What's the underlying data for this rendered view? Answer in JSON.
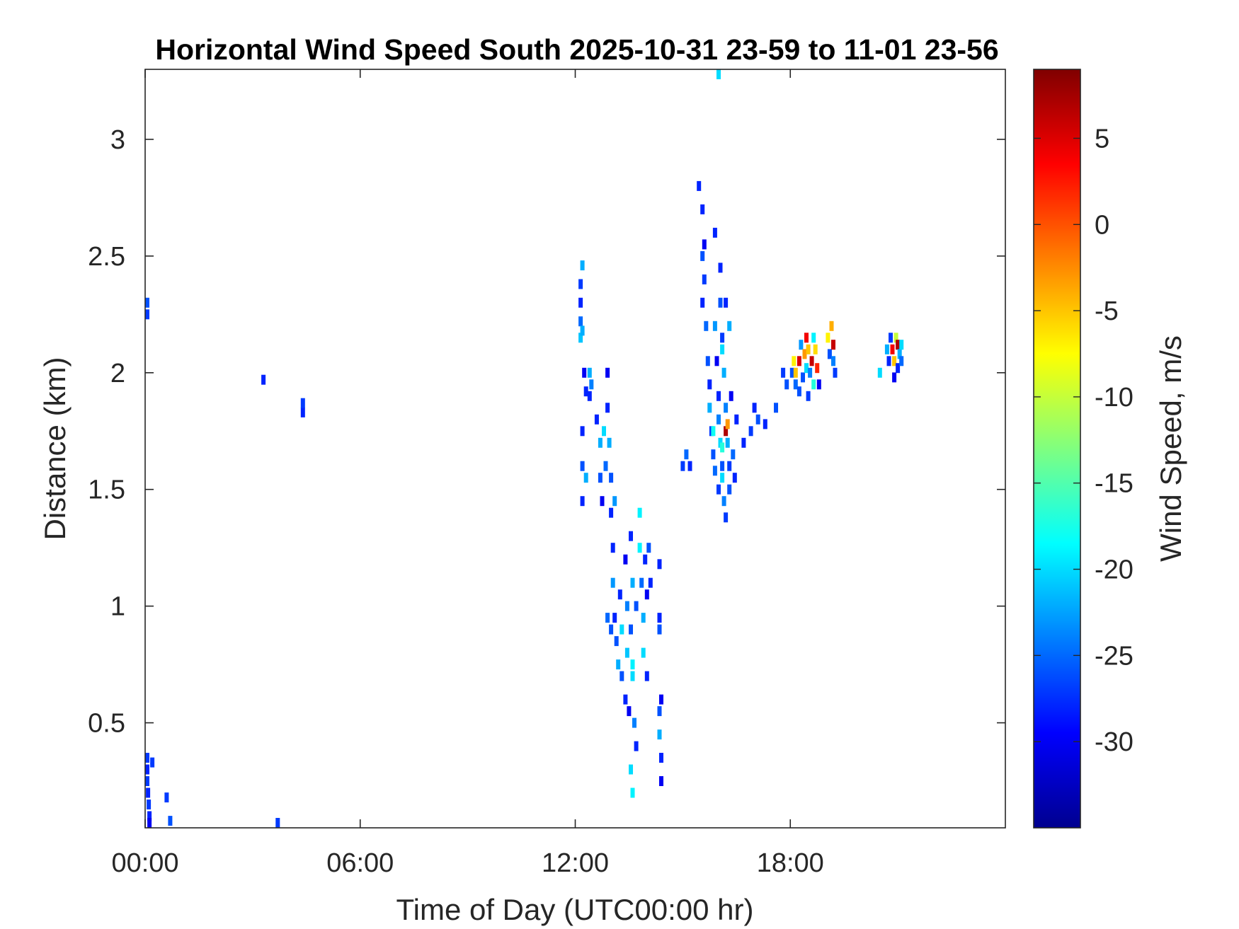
{
  "chart_data": {
    "type": "heatmap",
    "title": "Horizontal Wind Speed South 2025-10-31 23-59 to 11-01 23-56",
    "xlabel": "Time of Day (UTC00:00 hr)",
    "ylabel": "Distance (km)",
    "xlim": [
      0,
      24
    ],
    "ylim": [
      0.05,
      3.3
    ],
    "x_ticks": [
      {
        "value": 0,
        "label": "00:00"
      },
      {
        "value": 6,
        "label": "06:00"
      },
      {
        "value": 12,
        "label": "12:00"
      },
      {
        "value": 18,
        "label": "18:00"
      }
    ],
    "y_ticks": [
      {
        "value": 0.5,
        "label": "0.5"
      },
      {
        "value": 1,
        "label": "1"
      },
      {
        "value": 1.5,
        "label": "1.5"
      },
      {
        "value": 2,
        "label": "2"
      },
      {
        "value": 2.5,
        "label": "2.5"
      },
      {
        "value": 3,
        "label": "3"
      }
    ],
    "grid": false,
    "colorbar": {
      "label": "Wind Speed, m/s",
      "colormap": "jet",
      "range": [
        -35,
        9
      ],
      "ticks": [
        {
          "value": 5,
          "label": "5"
        },
        {
          "value": 0,
          "label": "0"
        },
        {
          "value": -5,
          "label": "-5"
        },
        {
          "value": -10,
          "label": "-10"
        },
        {
          "value": -15,
          "label": "-15"
        },
        {
          "value": -20,
          "label": "-20"
        },
        {
          "value": -25,
          "label": "-25"
        },
        {
          "value": -30,
          "label": "-30"
        }
      ]
    },
    "cells": [
      [
        0.0,
        2.25,
        -27
      ],
      [
        0.0,
        2.3,
        -26
      ],
      [
        0.0,
        0.35,
        -27
      ],
      [
        0.02,
        0.3,
        -28
      ],
      [
        0.05,
        0.25,
        -27
      ],
      [
        0.08,
        0.2,
        -28
      ],
      [
        0.1,
        0.15,
        -27
      ],
      [
        0.12,
        0.1,
        -28
      ],
      [
        0.12,
        0.06,
        -30
      ],
      [
        0.2,
        0.33,
        -27
      ],
      [
        0.6,
        0.18,
        -27
      ],
      [
        0.7,
        0.08,
        -26
      ],
      [
        3.3,
        1.97,
        -28
      ],
      [
        4.4,
        1.83,
        -28
      ],
      [
        4.4,
        1.87,
        -27
      ],
      [
        3.7,
        0.06,
        -27
      ],
      [
        12.15,
        2.38,
        -27
      ],
      [
        12.15,
        2.3,
        -28
      ],
      [
        12.15,
        2.22,
        -25
      ],
      [
        12.15,
        2.15,
        -21
      ],
      [
        12.2,
        2.46,
        -22
      ],
      [
        12.2,
        2.18,
        -22
      ],
      [
        12.25,
        2.0,
        -30
      ],
      [
        12.3,
        1.92,
        -28
      ],
      [
        12.4,
        2.0,
        -22
      ],
      [
        12.4,
        1.9,
        -28
      ],
      [
        12.45,
        1.95,
        -24
      ],
      [
        12.2,
        1.75,
        -28
      ],
      [
        12.2,
        1.6,
        -26
      ],
      [
        12.2,
        1.45,
        -28
      ],
      [
        12.3,
        1.55,
        -22
      ],
      [
        12.6,
        1.8,
        -28
      ],
      [
        12.7,
        1.7,
        -22
      ],
      [
        12.7,
        1.55,
        -26
      ],
      [
        12.75,
        1.45,
        -30
      ],
      [
        12.9,
        2.0,
        -30
      ],
      [
        12.9,
        1.85,
        -28
      ],
      [
        12.95,
        1.7,
        -22
      ],
      [
        13.0,
        1.55,
        -26
      ],
      [
        13.0,
        1.4,
        -28
      ],
      [
        13.05,
        1.25,
        -28
      ],
      [
        13.1,
        1.45,
        -23
      ],
      [
        12.85,
        1.6,
        -25
      ],
      [
        12.8,
        1.75,
        -20
      ],
      [
        13.05,
        1.1,
        -23
      ],
      [
        13.1,
        0.95,
        -28
      ],
      [
        13.15,
        0.85,
        -26
      ],
      [
        13.2,
        0.75,
        -22
      ],
      [
        13.25,
        1.05,
        -28
      ],
      [
        13.3,
        0.9,
        -20
      ],
      [
        13.3,
        0.7,
        -26
      ],
      [
        13.4,
        0.6,
        -28
      ],
      [
        13.4,
        1.2,
        -30
      ],
      [
        13.45,
        1.0,
        -24
      ],
      [
        13.45,
        0.8,
        -21
      ],
      [
        13.5,
        0.55,
        -30
      ],
      [
        13.55,
        0.9,
        -26
      ],
      [
        13.55,
        1.3,
        -28
      ],
      [
        13.6,
        1.1,
        -22
      ],
      [
        13.6,
        0.7,
        -20
      ],
      [
        13.65,
        0.5,
        -24
      ],
      [
        13.7,
        1.0,
        -26
      ],
      [
        13.7,
        0.4,
        -28
      ],
      [
        13.55,
        0.3,
        -20
      ],
      [
        13.6,
        0.2,
        -19
      ],
      [
        13.6,
        0.75,
        -19
      ],
      [
        13.8,
        1.4,
        -19
      ],
      [
        13.8,
        1.25,
        -19
      ],
      [
        13.85,
        1.1,
        -25
      ],
      [
        13.9,
        0.95,
        -22
      ],
      [
        13.9,
        0.8,
        -20
      ],
      [
        13.95,
        1.2,
        -28
      ],
      [
        14.0,
        1.05,
        -30
      ],
      [
        14.0,
        0.7,
        -28
      ],
      [
        12.9,
        0.95,
        -25
      ],
      [
        13.0,
        0.9,
        -26
      ],
      [
        14.05,
        1.25,
        -26
      ],
      [
        14.1,
        1.1,
        -28
      ],
      [
        14.35,
        1.18,
        -28
      ],
      [
        14.35,
        0.95,
        -28
      ],
      [
        14.35,
        0.9,
        -26
      ],
      [
        14.35,
        0.55,
        -26
      ],
      [
        14.35,
        0.45,
        -22
      ],
      [
        14.4,
        0.6,
        -30
      ],
      [
        14.4,
        0.35,
        -28
      ],
      [
        14.4,
        0.25,
        -30
      ],
      [
        15.0,
        1.6,
        -27
      ],
      [
        15.1,
        1.65,
        -25
      ],
      [
        15.2,
        1.6,
        -28
      ],
      [
        15.45,
        2.8,
        -28
      ],
      [
        15.55,
        2.7,
        -28
      ],
      [
        15.55,
        2.5,
        -26
      ],
      [
        15.55,
        2.3,
        -28
      ],
      [
        15.6,
        2.55,
        -30
      ],
      [
        15.6,
        2.4,
        -27
      ],
      [
        15.65,
        2.2,
        -25
      ],
      [
        15.7,
        2.05,
        -26
      ],
      [
        15.75,
        1.95,
        -28
      ],
      [
        15.75,
        1.85,
        -22
      ],
      [
        15.8,
        1.75,
        -27
      ],
      [
        15.85,
        1.65,
        -26
      ],
      [
        15.9,
        2.6,
        -28
      ],
      [
        15.9,
        2.2,
        -23
      ],
      [
        15.95,
        2.05,
        -30
      ],
      [
        16.0,
        1.9,
        -28
      ],
      [
        16.0,
        1.8,
        -24
      ],
      [
        16.05,
        1.7,
        -20
      ],
      [
        16.1,
        1.6,
        -26
      ],
      [
        16.05,
        2.45,
        -28
      ],
      [
        16.05,
        2.3,
        -26
      ],
      [
        16.1,
        2.15,
        -27
      ],
      [
        16.15,
        2.0,
        -22
      ],
      [
        16.2,
        1.85,
        -24
      ],
      [
        16.2,
        1.75,
        7
      ],
      [
        16.25,
        1.78,
        -3
      ],
      [
        16.25,
        1.7,
        -22
      ],
      [
        16.3,
        1.6,
        -27
      ],
      [
        16.3,
        1.5,
        -26
      ],
      [
        15.9,
        1.58,
        -25
      ],
      [
        16.0,
        1.5,
        -27
      ],
      [
        16.1,
        1.55,
        -20
      ],
      [
        16.15,
        1.45,
        -24
      ],
      [
        16.2,
        1.38,
        -27
      ],
      [
        16.1,
        2.1,
        -20
      ],
      [
        16.2,
        2.3,
        -28
      ],
      [
        16.3,
        2.2,
        -22
      ],
      [
        16.35,
        1.9,
        -30
      ],
      [
        16.4,
        1.65,
        -25
      ],
      [
        16.45,
        1.55,
        -28
      ],
      [
        16.5,
        1.8,
        -28
      ],
      [
        16.1,
        1.68,
        -17
      ],
      [
        15.85,
        1.75,
        -18
      ],
      [
        16.7,
        1.7,
        -28
      ],
      [
        16.9,
        1.75,
        -27
      ],
      [
        17.0,
        1.85,
        -28
      ],
      [
        17.1,
        1.8,
        -26
      ],
      [
        17.3,
        1.78,
        -28
      ],
      [
        17.6,
        1.85,
        -26
      ],
      [
        17.8,
        2.0,
        -27
      ],
      [
        17.9,
        1.95,
        -26
      ],
      [
        18.05,
        2.0,
        -26
      ],
      [
        18.1,
        2.05,
        -7
      ],
      [
        18.15,
        2.0,
        -5
      ],
      [
        18.15,
        1.95,
        -25
      ],
      [
        18.25,
        2.05,
        5
      ],
      [
        18.25,
        1.92,
        -26
      ],
      [
        18.3,
        2.12,
        -23
      ],
      [
        18.35,
        1.98,
        -26
      ],
      [
        18.4,
        2.08,
        -3
      ],
      [
        18.45,
        2.15,
        4
      ],
      [
        18.45,
        2.02,
        -20
      ],
      [
        18.5,
        2.1,
        -5
      ],
      [
        18.55,
        2.0,
        -24
      ],
      [
        18.6,
        2.05,
        6
      ],
      [
        18.65,
        2.15,
        -19
      ],
      [
        18.65,
        1.95,
        -17
      ],
      [
        18.7,
        2.1,
        -6
      ],
      [
        18.75,
        2.02,
        2
      ],
      [
        18.8,
        1.95,
        -30
      ],
      [
        18.5,
        1.9,
        -27
      ],
      [
        19.05,
        2.15,
        -7
      ],
      [
        19.1,
        2.08,
        -26
      ],
      [
        19.15,
        2.2,
        -4
      ],
      [
        19.2,
        2.12,
        6
      ],
      [
        19.2,
        2.05,
        -24
      ],
      [
        19.25,
        2.0,
        -27
      ],
      [
        20.5,
        2.0,
        -20
      ],
      [
        20.7,
        2.1,
        -22
      ],
      [
        20.75,
        2.05,
        -28
      ],
      [
        20.8,
        2.15,
        -27
      ],
      [
        20.85,
        2.1,
        4
      ],
      [
        20.9,
        2.05,
        -5
      ],
      [
        20.95,
        2.15,
        -10
      ],
      [
        21.0,
        2.12,
        7
      ],
      [
        21.0,
        2.02,
        -28
      ],
      [
        21.05,
        2.08,
        -22
      ],
      [
        21.1,
        2.12,
        -20
      ],
      [
        21.1,
        2.05,
        -25
      ],
      [
        20.9,
        1.98,
        -30
      ],
      [
        16.0,
        3.3,
        -21
      ],
      [
        16.0,
        3.28,
        -20
      ]
    ]
  }
}
